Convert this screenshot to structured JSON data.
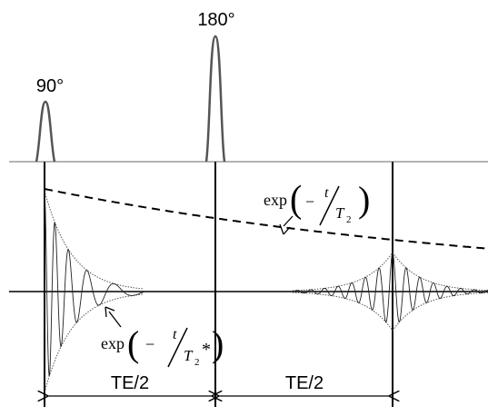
{
  "pulse_labels": {
    "p90": "90°",
    "p180": "180°"
  },
  "interval_labels": {
    "first": "TE/2",
    "second": "TE/2"
  },
  "annotations": {
    "t2": {
      "func": "exp",
      "minus": "−",
      "var": "t",
      "sub_var": "T",
      "sub": "2",
      "star": ""
    },
    "t2star": {
      "func": "exp",
      "minus": "−",
      "var": "t",
      "sub_var": "T",
      "sub": "2",
      "star": "*"
    }
  }
}
